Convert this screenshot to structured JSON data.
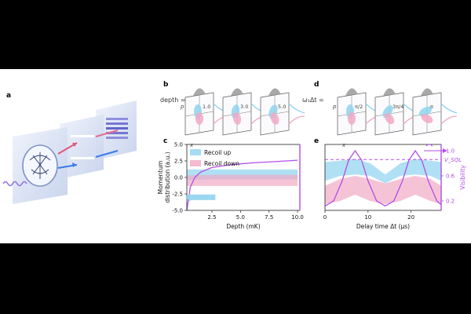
{
  "panels": {
    "a": "a",
    "b": "b",
    "c": "c",
    "d": "d",
    "e": "e"
  },
  "panel_b": {
    "prefix": "depth =",
    "values": [
      "1.0",
      "3.0",
      "5.0"
    ],
    "x_axis": "x",
    "p_axis": "p"
  },
  "panel_d": {
    "prefix": "ω₁Δt =",
    "values": [
      "π/2",
      "3π/4",
      "π"
    ],
    "x_axis": "x",
    "p_axis": "p"
  },
  "chart_data": [
    {
      "id": "c",
      "type": "area",
      "xlabel": "Depth (mK)",
      "ylabel": "Momentum distribution (a.u.)",
      "xticks": [
        2.5,
        5.0,
        7.5,
        10.0
      ],
      "yticks": [
        -5.0,
        -2.5,
        0.0,
        2.5,
        5.0
      ],
      "xlim": [
        0.3,
        10.2
      ],
      "ylim": [
        -5.0,
        5.0
      ],
      "legend": [
        "Recoil up",
        "Recoil down"
      ],
      "legend_placement": "top-left",
      "series": [
        {
          "name": "Recoil up",
          "x": [
            0.3,
            2.5,
            5.0,
            7.5,
            10.0
          ],
          "upper": [
            1.2,
            1.2,
            1.2,
            1.2,
            1.2
          ],
          "lower": [
            -0.4,
            -0.3,
            -0.3,
            -0.3,
            -0.3
          ]
        },
        {
          "name": "Recoil down",
          "x": [
            0.3,
            2.5,
            5.0,
            7.5,
            10.0
          ],
          "upper": [
            0.3,
            0.4,
            0.4,
            0.4,
            0.4
          ],
          "lower": [
            -1.3,
            -1.3,
            -1.3,
            -1.3,
            -1.3
          ]
        }
      ],
      "curve": {
        "x": [
          0.3,
          0.6,
          1.0,
          1.5,
          2.5,
          4.0,
          6.0,
          8.0,
          10.0
        ],
        "y": [
          -5.0,
          -1.5,
          0.0,
          0.8,
          1.5,
          1.9,
          2.2,
          2.4,
          2.6
        ]
      }
    },
    {
      "id": "e",
      "type": "line",
      "xlabel": "Delay time Δt (μs)",
      "y2label": "Visibility",
      "xticks": [
        0,
        10,
        20
      ],
      "y2ticks": [
        0.2,
        0.6,
        1.0
      ],
      "xlim": [
        0,
        27
      ],
      "y2lim": [
        0.05,
        1.1
      ],
      "threshold_label": "V_SQL",
      "threshold": 0.86,
      "bands": [
        {
          "name": "Recoil up",
          "x": [
            0,
            3.5,
            7,
            10.5,
            14,
            17.5,
            21,
            24.5,
            27
          ],
          "upper": [
            0.82,
            0.84,
            0.87,
            0.8,
            0.62,
            0.8,
            0.87,
            0.84,
            0.82
          ],
          "lower": [
            0.52,
            0.6,
            0.62,
            0.6,
            0.48,
            0.6,
            0.62,
            0.6,
            0.52
          ]
        },
        {
          "name": "Recoil down",
          "x": [
            0,
            3.5,
            7,
            10.5,
            14,
            17.5,
            21,
            24.5,
            27
          ],
          "upper": [
            0.44,
            0.55,
            0.6,
            0.55,
            0.48,
            0.55,
            0.6,
            0.55,
            0.44
          ],
          "lower": [
            0.15,
            0.2,
            0.3,
            0.2,
            0.15,
            0.2,
            0.3,
            0.2,
            0.15
          ]
        }
      ],
      "curve": {
        "x": [
          0,
          2,
          4,
          5.5,
          7,
          8.5,
          10,
          12,
          14,
          16,
          18,
          19.5,
          21,
          22.5,
          24,
          26,
          27
        ],
        "y": [
          0.12,
          0.2,
          0.52,
          0.85,
          1.0,
          0.85,
          0.52,
          0.2,
          0.12,
          0.2,
          0.52,
          0.85,
          1.0,
          0.85,
          0.52,
          0.2,
          0.14
        ]
      }
    }
  ],
  "colors": {
    "cyan": "#8fd3ef",
    "pink": "#f1a9c4",
    "purple": "#b24ee8",
    "axis": "#222222"
  }
}
